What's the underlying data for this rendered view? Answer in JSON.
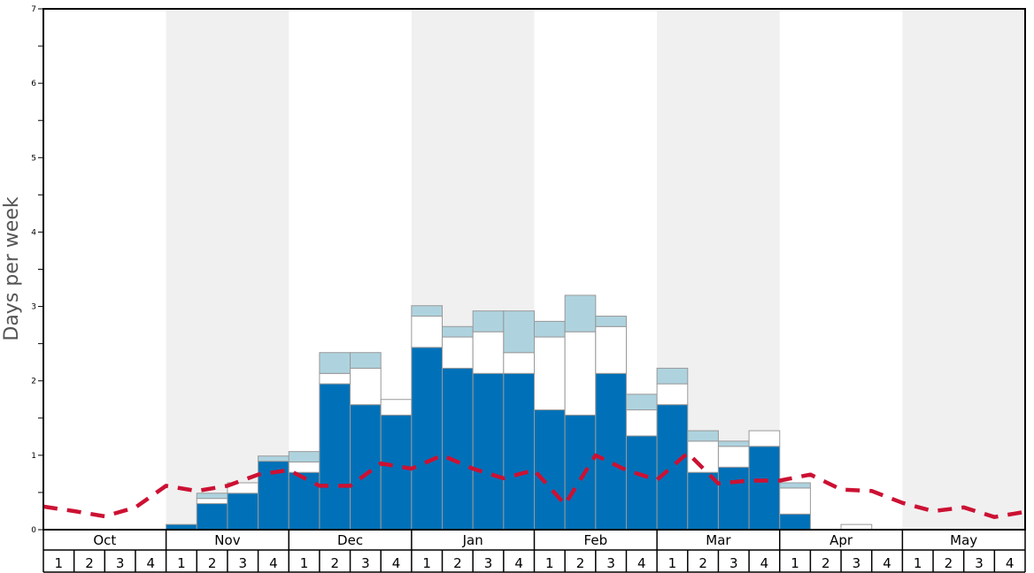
{
  "chart_data": {
    "type": "bar",
    "stacked": true,
    "ylabel": "Days per week",
    "ylim": [
      0,
      7
    ],
    "yticks": [
      "0",
      "1",
      "2",
      "3",
      "4",
      "5",
      "6",
      "7"
    ],
    "months": [
      "Oct",
      "Nov",
      "Dec",
      "Jan",
      "Feb",
      "Mar",
      "Apr",
      "May"
    ],
    "week_labels": [
      "1",
      "2",
      "3",
      "4"
    ],
    "shaded_months": [
      "Nov",
      "Jan",
      "Mar",
      "May"
    ],
    "colors": {
      "dark": "#0071b8",
      "white": "#ffffff",
      "light": "#aed3df",
      "line": "#cc1133",
      "shade": "#f0f0f0",
      "bar_edge": "#999999"
    },
    "series": [
      {
        "key": "dark",
        "values": [
          0,
          0,
          0,
          0,
          0.07,
          0.35,
          0.49,
          0.92,
          0.77,
          1.96,
          1.68,
          1.54,
          2.45,
          2.17,
          2.1,
          2.1,
          1.61,
          1.54,
          2.1,
          1.26,
          1.68,
          0.77,
          0.84,
          1.12,
          0.21,
          0,
          0,
          0,
          0,
          0,
          0,
          0
        ]
      },
      {
        "key": "white",
        "values": [
          0,
          0,
          0,
          0,
          0,
          0.07,
          0.14,
          0,
          0.14,
          0.14,
          0.49,
          0.21,
          0.42,
          0.42,
          0.56,
          0.28,
          0.98,
          1.12,
          0.63,
          0.35,
          0.28,
          0.42,
          0.28,
          0.21,
          0.35,
          0,
          0.07,
          0,
          0,
          0,
          0,
          0
        ]
      },
      {
        "key": "light",
        "values": [
          0,
          0,
          0,
          0,
          0,
          0.07,
          0,
          0.07,
          0.14,
          0.28,
          0.21,
          0,
          0.14,
          0.14,
          0.28,
          0.56,
          0.21,
          0.49,
          0.14,
          0.21,
          0.21,
          0.14,
          0.07,
          0,
          0.07,
          0,
          0,
          0,
          0,
          0,
          0,
          0
        ]
      }
    ],
    "line": {
      "values": [
        0.31,
        0.25,
        0.18,
        0.3,
        0.59,
        0.52,
        0.59,
        0.74,
        0.8,
        0.59,
        0.59,
        0.89,
        0.82,
        1.0,
        0.82,
        0.69,
        0.8,
        0.34,
        1.0,
        0.8,
        0.67,
        1.03,
        0.62,
        0.66,
        0.66,
        0.74,
        0.54,
        0.52,
        0.36,
        0.25,
        0.3,
        0.17,
        0.24
      ]
    }
  }
}
